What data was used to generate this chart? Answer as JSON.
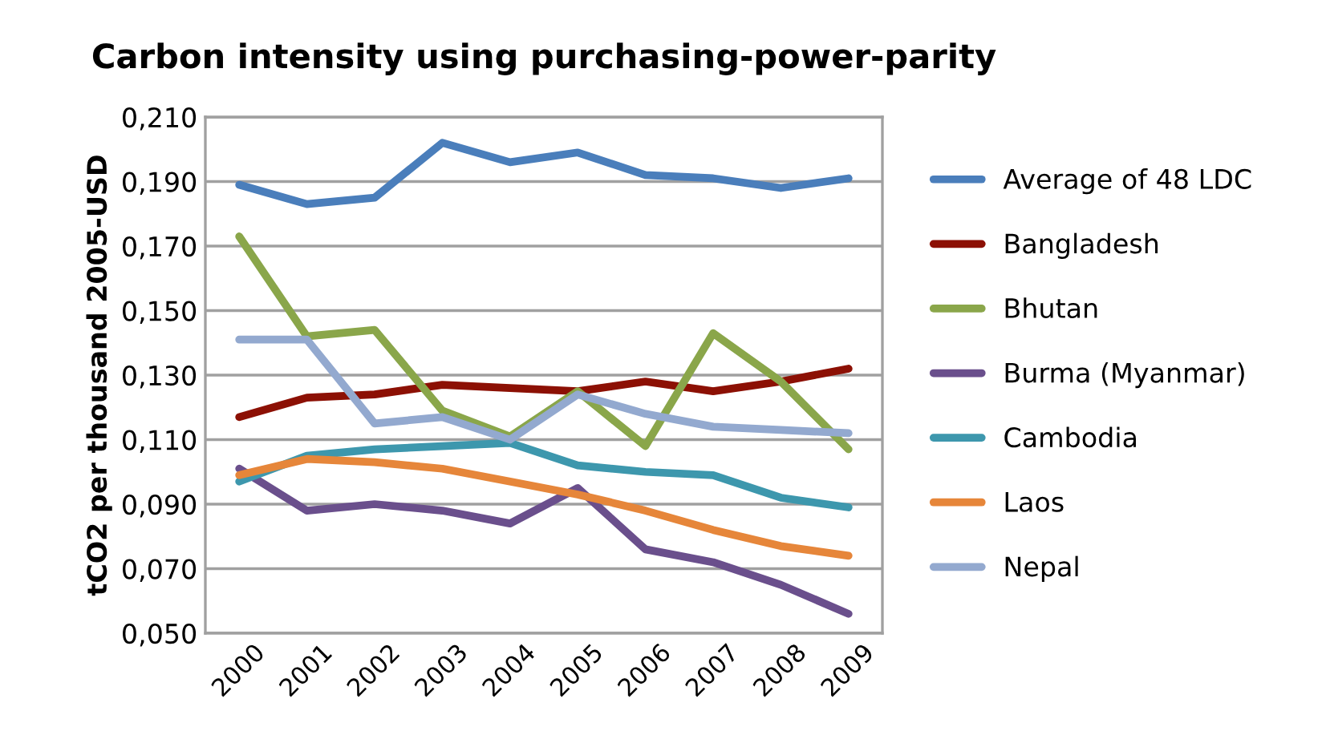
{
  "chart_data": {
    "type": "line",
    "title": "Carbon intensity using purchasing-power-parity",
    "ylabel": "tCO2 per thousand 2005-USD",
    "categories": [
      "2000",
      "2001",
      "2002",
      "2003",
      "2004",
      "2005",
      "2006",
      "2007",
      "2008",
      "2009"
    ],
    "series": [
      {
        "name": "Average of 48 LDC",
        "color": "#4a7ebb",
        "values": [
          0.189,
          0.183,
          0.185,
          0.202,
          0.196,
          0.199,
          0.192,
          0.191,
          0.188,
          0.191
        ]
      },
      {
        "name": "Bangladesh",
        "color": "#8c1004",
        "values": [
          0.117,
          0.123,
          0.124,
          0.127,
          0.126,
          0.125,
          0.128,
          0.125,
          0.128,
          0.132
        ]
      },
      {
        "name": "Bhutan",
        "color": "#8aa64a",
        "values": [
          0.173,
          0.142,
          0.144,
          0.119,
          0.111,
          0.125,
          0.108,
          0.143,
          0.128,
          0.107
        ]
      },
      {
        "name": "Burma (Myanmar)",
        "color": "#6a4f8c",
        "values": [
          0.101,
          0.088,
          0.09,
          0.088,
          0.084,
          0.095,
          0.076,
          0.072,
          0.065,
          0.056
        ]
      },
      {
        "name": "Cambodia",
        "color": "#3d97ad",
        "values": [
          0.097,
          0.105,
          0.107,
          0.108,
          0.109,
          0.102,
          0.1,
          0.099,
          0.092,
          0.089
        ]
      },
      {
        "name": "Laos",
        "color": "#e6863a",
        "values": [
          0.099,
          0.104,
          0.103,
          0.101,
          0.097,
          0.093,
          0.088,
          0.082,
          0.077,
          0.074
        ]
      },
      {
        "name": "Nepal",
        "color": "#93a9cf",
        "values": [
          0.141,
          0.141,
          0.115,
          0.117,
          0.11,
          0.124,
          0.118,
          0.114,
          0.113,
          0.112
        ]
      }
    ],
    "ylim": [
      0.05,
      0.21
    ],
    "yticks": [
      {
        "value": 0.05,
        "label": "0,050"
      },
      {
        "value": 0.07,
        "label": "0,070"
      },
      {
        "value": 0.09,
        "label": "0,090"
      },
      {
        "value": 0.11,
        "label": "0,110"
      },
      {
        "value": 0.13,
        "label": "0,130"
      },
      {
        "value": 0.15,
        "label": "0,150"
      },
      {
        "value": 0.17,
        "label": "0,170"
      },
      {
        "value": 0.19,
        "label": "0,190"
      },
      {
        "value": 0.21,
        "label": "0,210"
      }
    ],
    "grid": "y",
    "legend": "right",
    "marker": "none",
    "line_style": "solid"
  }
}
